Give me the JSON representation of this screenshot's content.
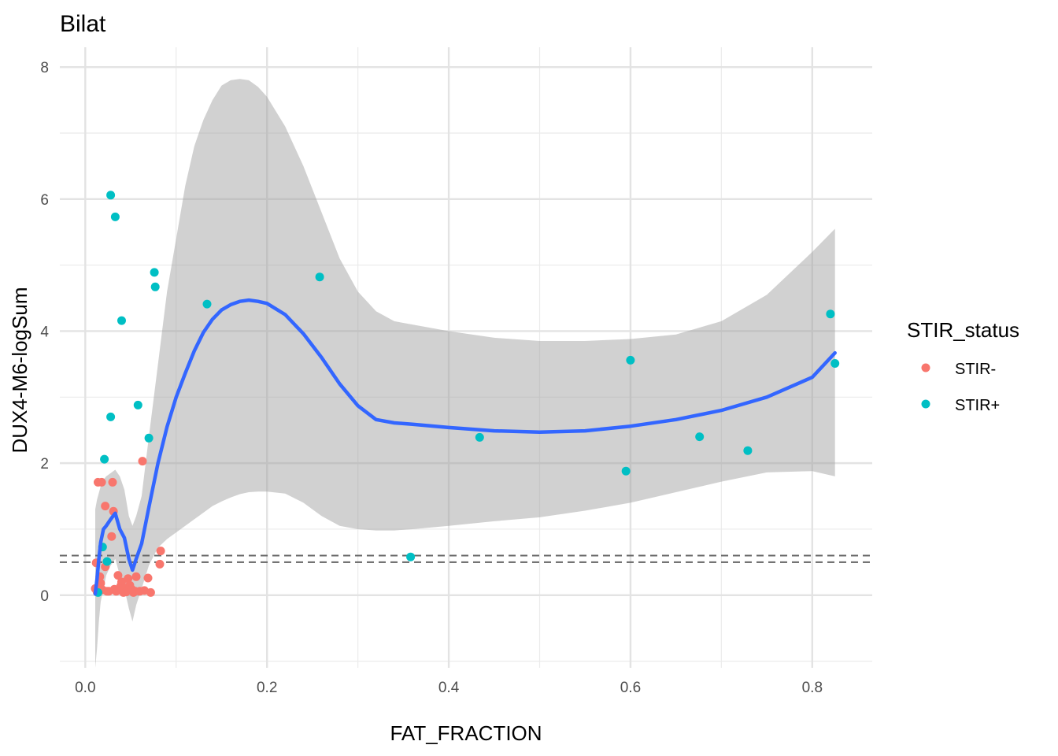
{
  "chart_data": {
    "type": "scatter",
    "title": "Bilat",
    "xlabel": "FAT_FRACTION",
    "ylabel": "DUX4-M6-logSum",
    "xlim": [
      -0.028,
      0.866
    ],
    "ylim": [
      -1.1,
      8.3
    ],
    "x_ticks": [
      0.0,
      0.2,
      0.4,
      0.6,
      0.8
    ],
    "x_tick_labels": [
      "0.0",
      "0.2",
      "0.4",
      "0.6",
      "0.8"
    ],
    "y_ticks": [
      0,
      2,
      4,
      6,
      8
    ],
    "y_tick_labels": [
      "0",
      "2",
      "4",
      "6",
      "8"
    ],
    "grid": true,
    "legend": {
      "title": "STIR_status",
      "position": "right",
      "entries": [
        {
          "label": "STIR-",
          "color": "#F8766D"
        },
        {
          "label": "STIR+",
          "color": "#00BFC4"
        }
      ]
    },
    "reference_lines": [
      {
        "orientation": "horizontal",
        "y": 0.6,
        "style": "dashed",
        "color": "#666666"
      },
      {
        "orientation": "horizontal",
        "y": 0.5,
        "style": "dashed",
        "color": "#666666"
      }
    ],
    "series": [
      {
        "name": "STIR-",
        "color": "#F8766D",
        "points": [
          [
            0.011,
            0.1
          ],
          [
            0.012,
            0.49
          ],
          [
            0.013,
            0.05
          ],
          [
            0.014,
            1.71
          ],
          [
            0.016,
            0.28
          ],
          [
            0.017,
            0.18
          ],
          [
            0.018,
            1.71
          ],
          [
            0.019,
            0.08
          ],
          [
            0.022,
            1.35
          ],
          [
            0.022,
            0.43
          ],
          [
            0.024,
            0.06
          ],
          [
            0.026,
            0.06
          ],
          [
            0.029,
            0.89
          ],
          [
            0.03,
            1.71
          ],
          [
            0.031,
            1.27
          ],
          [
            0.032,
            0.09
          ],
          [
            0.034,
            0.06
          ],
          [
            0.036,
            0.3
          ],
          [
            0.037,
            0.08
          ],
          [
            0.039,
            0.14
          ],
          [
            0.04,
            0.2
          ],
          [
            0.042,
            0.04
          ],
          [
            0.043,
            0.11
          ],
          [
            0.045,
            0.05
          ],
          [
            0.047,
            0.25
          ],
          [
            0.049,
            0.15
          ],
          [
            0.051,
            0.09
          ],
          [
            0.053,
            0.04
          ],
          [
            0.055,
            0.06
          ],
          [
            0.056,
            0.28
          ],
          [
            0.06,
            0.06
          ],
          [
            0.063,
            2.03
          ],
          [
            0.065,
            0.07
          ],
          [
            0.069,
            0.26
          ],
          [
            0.072,
            0.04
          ],
          [
            0.082,
            0.47
          ],
          [
            0.083,
            0.67
          ]
        ]
      },
      {
        "name": "STIR+",
        "color": "#00BFC4",
        "points": [
          [
            0.014,
            0.04
          ],
          [
            0.019,
            0.73
          ],
          [
            0.021,
            2.06
          ],
          [
            0.024,
            0.51
          ],
          [
            0.028,
            6.06
          ],
          [
            0.028,
            2.7
          ],
          [
            0.033,
            5.73
          ],
          [
            0.04,
            4.16
          ],
          [
            0.058,
            2.88
          ],
          [
            0.07,
            2.38
          ],
          [
            0.076,
            4.89
          ],
          [
            0.077,
            4.67
          ],
          [
            0.134,
            4.41
          ],
          [
            0.258,
            4.82
          ],
          [
            0.358,
            0.58
          ],
          [
            0.434,
            2.39
          ],
          [
            0.595,
            1.88
          ],
          [
            0.6,
            3.56
          ],
          [
            0.676,
            2.4
          ],
          [
            0.729,
            2.19
          ],
          [
            0.82,
            4.26
          ],
          [
            0.825,
            3.51
          ]
        ]
      }
    ],
    "smooth": {
      "color": "#3366FF",
      "ci_color": "#999999",
      "x": [
        0.011,
        0.013,
        0.015,
        0.017,
        0.02,
        0.023,
        0.028,
        0.033,
        0.038,
        0.043,
        0.048,
        0.052,
        0.056,
        0.062,
        0.07,
        0.08,
        0.09,
        0.1,
        0.11,
        0.12,
        0.13,
        0.14,
        0.15,
        0.16,
        0.17,
        0.18,
        0.19,
        0.2,
        0.22,
        0.24,
        0.26,
        0.28,
        0.3,
        0.32,
        0.34,
        0.36,
        0.4,
        0.45,
        0.5,
        0.55,
        0.6,
        0.65,
        0.7,
        0.75,
        0.8,
        0.825
      ],
      "y": [
        0.02,
        0.25,
        0.55,
        0.8,
        1.0,
        1.05,
        1.15,
        1.24,
        1.0,
        0.87,
        0.55,
        0.38,
        0.55,
        0.78,
        1.33,
        2.0,
        2.55,
        3.0,
        3.36,
        3.7,
        3.98,
        4.18,
        4.32,
        4.4,
        4.45,
        4.47,
        4.45,
        4.42,
        4.25,
        3.96,
        3.6,
        3.2,
        2.87,
        2.66,
        2.61,
        2.59,
        2.54,
        2.49,
        2.47,
        2.49,
        2.56,
        2.66,
        2.8,
        3.0,
        3.3,
        3.67
      ],
      "y_upper": [
        1.3,
        1.45,
        1.55,
        1.65,
        1.75,
        1.8,
        1.85,
        1.9,
        1.8,
        1.6,
        1.2,
        1.05,
        1.2,
        1.5,
        2.4,
        3.5,
        4.6,
        5.4,
        6.2,
        6.8,
        7.2,
        7.5,
        7.72,
        7.8,
        7.82,
        7.8,
        7.7,
        7.55,
        7.1,
        6.5,
        5.8,
        5.1,
        4.6,
        4.3,
        4.15,
        4.1,
        4.0,
        3.9,
        3.85,
        3.85,
        3.88,
        3.95,
        4.15,
        4.55,
        5.2,
        5.55
      ],
      "y_lower": [
        -1.1,
        -0.8,
        -0.4,
        -0.1,
        0.1,
        0.3,
        0.45,
        0.55,
        0.3,
        0.1,
        -0.2,
        -0.4,
        -0.15,
        0.1,
        0.45,
        0.72,
        0.85,
        0.95,
        1.05,
        1.15,
        1.25,
        1.35,
        1.42,
        1.48,
        1.53,
        1.56,
        1.57,
        1.57,
        1.54,
        1.4,
        1.2,
        1.05,
        1.0,
        0.98,
        0.98,
        1.0,
        1.05,
        1.12,
        1.18,
        1.28,
        1.4,
        1.56,
        1.72,
        1.86,
        1.88,
        1.8
      ]
    }
  }
}
